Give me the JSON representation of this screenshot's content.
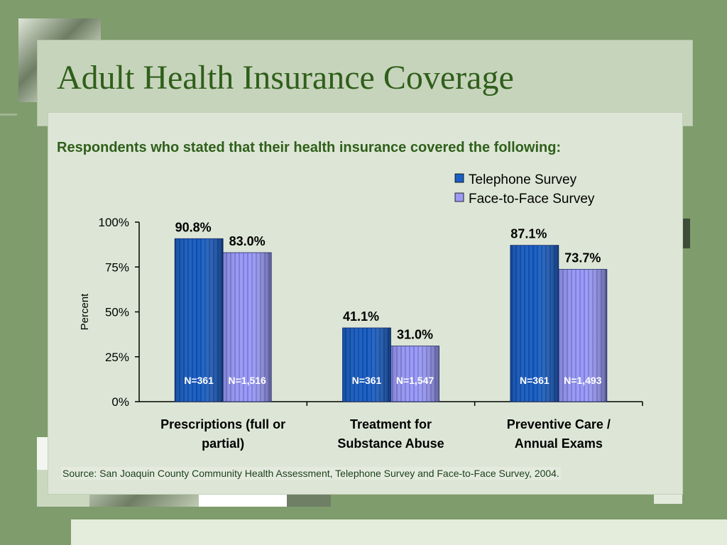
{
  "slide": {
    "title": "Adult Health Insurance Coverage",
    "subtitle": "Respondents who stated that their health insurance covered the following:",
    "source": "Source: San Joaquin County Community Health Assessment, Telephone Survey and Face-to-Face Survey, 2004."
  },
  "colors": {
    "background": "#7f9c6c",
    "title": "#2f5f1a",
    "telephone": "#1a5fc4",
    "face_to_face": "#9a9af5"
  },
  "chart_data": {
    "type": "bar",
    "title": "",
    "xlabel": "",
    "ylabel": "Percent",
    "ylim": [
      0,
      100
    ],
    "yticks": [
      0,
      25,
      50,
      75,
      100
    ],
    "ytick_labels": [
      "0%",
      "25%",
      "50%",
      "75%",
      "100%"
    ],
    "grid": false,
    "legend_position": "top-right",
    "categories": [
      [
        "Prescriptions (full or",
        "partial)"
      ],
      [
        "Treatment for",
        "Substance Abuse"
      ],
      [
        "Preventive Care /",
        "Annual Exams"
      ]
    ],
    "series": [
      {
        "name": "Telephone Survey",
        "values": [
          90.8,
          41.1,
          87.1
        ],
        "value_labels": [
          "90.8%",
          "41.1%",
          "87.1%"
        ],
        "n_labels": [
          "N=361",
          "N=361",
          "N=361"
        ]
      },
      {
        "name": "Face-to-Face Survey",
        "values": [
          83.0,
          31.0,
          73.7
        ],
        "value_labels": [
          "83.0%",
          "31.0%",
          "73.7%"
        ],
        "n_labels": [
          "N=1,516",
          "N=1,547",
          "N=1,493"
        ]
      }
    ]
  }
}
